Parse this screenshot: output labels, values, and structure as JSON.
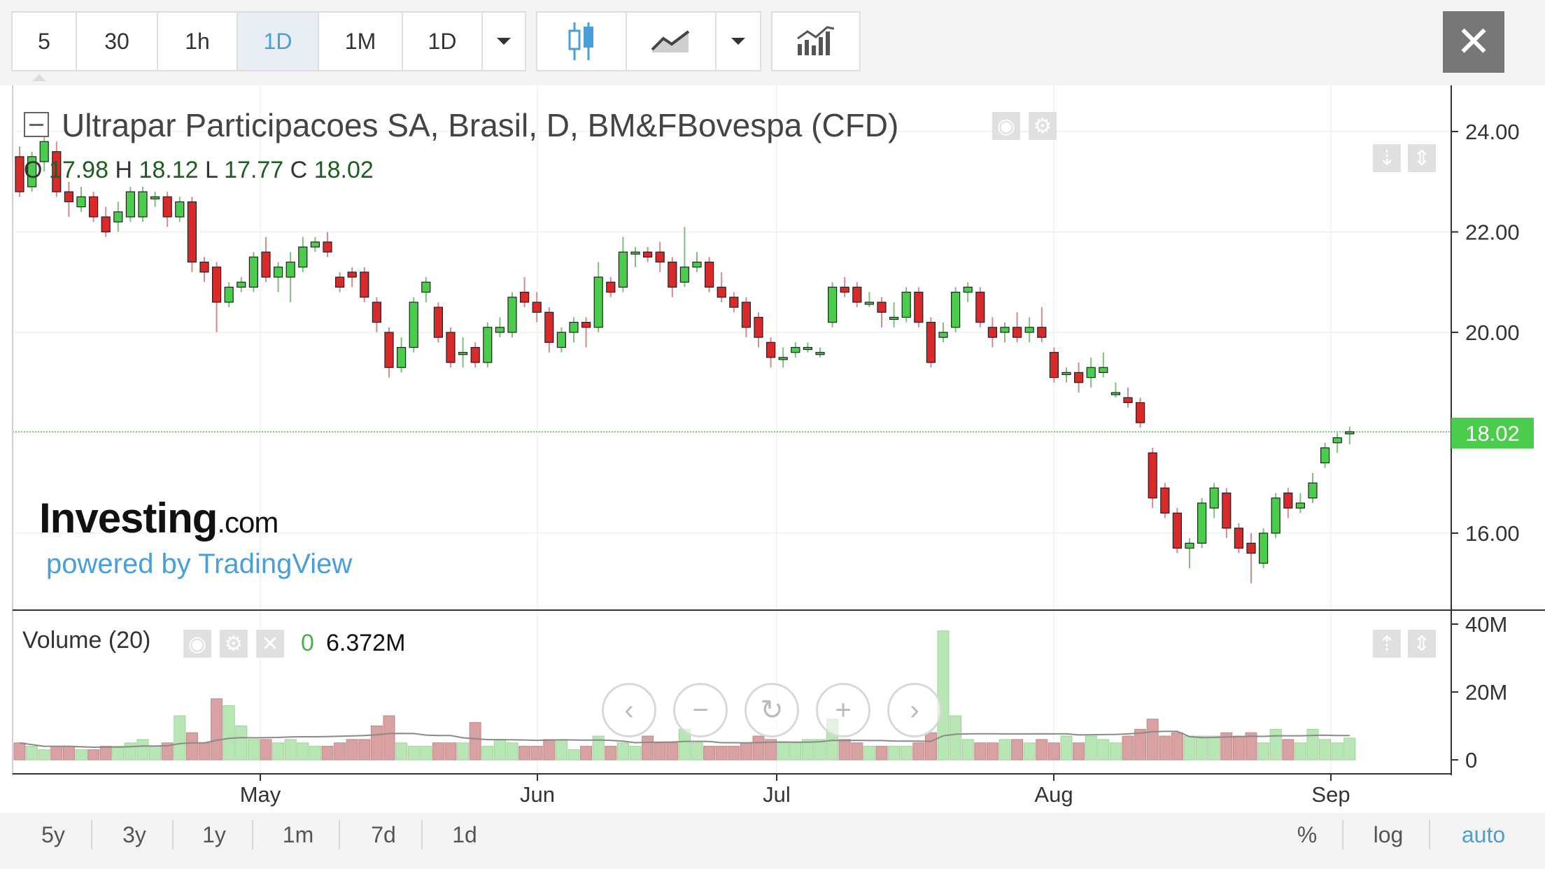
{
  "toolbar": {
    "intervals": [
      {
        "label": "5",
        "active": false
      },
      {
        "label": "30",
        "active": false
      },
      {
        "label": "1h",
        "active": false
      },
      {
        "label": "1D",
        "active": true
      },
      {
        "label": "1M",
        "active": false
      },
      {
        "label": "1D",
        "active": false
      }
    ],
    "icons": [
      "chevron-down-icon",
      "candlestick-icon",
      "line-chart-icon",
      "chevron-down-icon",
      "indicators-icon",
      "close-icon"
    ],
    "close_label": "✕"
  },
  "header": {
    "title": "Ultrapar Participacoes SA, Brasil, D, BM&FBovespa (CFD)",
    "ohlc": {
      "O": "17.98",
      "H": "18.12",
      "L": "17.77",
      "C": "18.02"
    }
  },
  "watermark": {
    "brand": "Investing",
    "suffix": ".com",
    "powered": "powered by TradingView"
  },
  "volume_panel": {
    "title": "Volume (20)",
    "zero": "0",
    "value": "6.372M"
  },
  "bottombar": {
    "ranges": [
      "5y",
      "3y",
      "1y",
      "1m",
      "7d",
      "1d"
    ],
    "right": [
      "%",
      "log",
      "auto"
    ]
  },
  "colors": {
    "up": "#4ccc4c",
    "down": "#d82a2a",
    "up_vol": "#b9e6b5",
    "down_vol": "#d8a2a2",
    "last_price": "#4ccc4c"
  },
  "chart_data": {
    "type": "candlestick",
    "price_axis": {
      "ticks": [
        "24.00",
        "22.00",
        "20.00",
        "18.00",
        "16.00"
      ],
      "range": [
        14.9,
        24.9
      ]
    },
    "volume_axis": {
      "ticks": [
        "40M",
        "20M",
        "0"
      ],
      "range": [
        0,
        40
      ]
    },
    "x_ticks": [
      "May",
      "Jun",
      "Jul",
      "Aug",
      "Sep"
    ],
    "last_price": "18.02",
    "last_price_value": 18.02,
    "candles": [
      [
        23.5,
        22.8,
        23.7,
        22.7,
        5
      ],
      [
        22.9,
        23.5,
        23.6,
        22.8,
        4
      ],
      [
        23.4,
        23.8,
        24.0,
        23.2,
        3
      ],
      [
        23.6,
        22.8,
        23.8,
        22.7,
        4
      ],
      [
        22.8,
        22.6,
        23.0,
        22.3,
        4
      ],
      [
        22.5,
        22.7,
        22.9,
        22.4,
        3
      ],
      [
        22.7,
        22.3,
        22.8,
        22.2,
        3
      ],
      [
        22.3,
        22.0,
        22.5,
        21.9,
        4
      ],
      [
        22.2,
        22.4,
        22.6,
        22.0,
        4
      ],
      [
        22.3,
        22.8,
        22.9,
        22.2,
        5
      ],
      [
        22.3,
        22.8,
        22.9,
        22.2,
        6
      ],
      [
        22.7,
        22.7,
        22.8,
        22.5,
        4
      ],
      [
        22.7,
        22.3,
        22.8,
        22.1,
        5
      ],
      [
        22.3,
        22.6,
        22.7,
        22.2,
        13
      ],
      [
        22.6,
        21.4,
        22.7,
        21.2,
        8
      ],
      [
        21.4,
        21.2,
        21.5,
        21.0,
        5
      ],
      [
        21.3,
        20.6,
        21.4,
        20.0,
        18
      ],
      [
        20.6,
        20.9,
        21.0,
        20.5,
        16
      ],
      [
        20.9,
        21.0,
        21.1,
        20.8,
        10
      ],
      [
        20.9,
        21.5,
        21.6,
        20.8,
        6
      ],
      [
        21.6,
        21.1,
        21.9,
        21.0,
        6
      ],
      [
        21.1,
        21.3,
        21.4,
        20.8,
        5
      ],
      [
        21.1,
        21.4,
        21.6,
        20.6,
        6
      ],
      [
        21.3,
        21.7,
        21.9,
        21.2,
        5
      ],
      [
        21.7,
        21.8,
        21.9,
        21.6,
        4
      ],
      [
        21.8,
        21.6,
        22.0,
        21.5,
        4
      ],
      [
        21.1,
        20.9,
        21.2,
        20.8,
        5
      ],
      [
        21.2,
        21.1,
        21.3,
        20.9,
        6
      ],
      [
        21.2,
        20.7,
        21.3,
        20.6,
        6
      ],
      [
        20.6,
        20.2,
        20.7,
        20.0,
        10
      ],
      [
        20.0,
        19.3,
        20.1,
        19.1,
        13
      ],
      [
        19.3,
        19.7,
        19.9,
        19.2,
        5
      ],
      [
        19.7,
        20.6,
        20.7,
        19.6,
        4
      ],
      [
        20.8,
        21.0,
        21.1,
        20.6,
        4
      ],
      [
        20.5,
        19.9,
        20.6,
        19.8,
        5
      ],
      [
        20.0,
        19.4,
        20.1,
        19.3,
        5
      ],
      [
        19.6,
        19.6,
        19.9,
        19.3,
        5
      ],
      [
        19.7,
        19.4,
        19.8,
        19.3,
        11
      ],
      [
        19.4,
        20.1,
        20.2,
        19.3,
        4
      ],
      [
        20.0,
        20.1,
        20.3,
        19.9,
        6
      ],
      [
        20.0,
        20.7,
        20.8,
        19.9,
        5
      ],
      [
        20.8,
        20.6,
        21.1,
        20.5,
        4
      ],
      [
        20.6,
        20.4,
        20.8,
        20.2,
        4
      ],
      [
        20.4,
        19.8,
        20.5,
        19.6,
        6
      ],
      [
        19.7,
        20.0,
        20.1,
        19.6,
        6
      ],
      [
        20.0,
        20.2,
        20.3,
        19.8,
        3
      ],
      [
        20.2,
        20.1,
        20.3,
        19.7,
        4
      ],
      [
        20.1,
        21.1,
        21.4,
        20.0,
        7
      ],
      [
        21.0,
        20.8,
        21.1,
        20.7,
        4
      ],
      [
        20.9,
        21.6,
        21.9,
        20.8,
        5
      ],
      [
        21.6,
        21.6,
        21.7,
        21.3,
        4
      ],
      [
        21.6,
        21.5,
        21.7,
        21.4,
        7
      ],
      [
        21.6,
        21.4,
        21.8,
        21.2,
        5
      ],
      [
        21.4,
        20.9,
        21.5,
        20.7,
        5
      ],
      [
        21.0,
        21.3,
        22.1,
        20.9,
        9
      ],
      [
        21.3,
        21.4,
        21.6,
        21.2,
        5
      ],
      [
        21.4,
        20.9,
        21.5,
        20.8,
        4
      ],
      [
        20.9,
        20.7,
        21.2,
        20.6,
        4
      ],
      [
        20.7,
        20.5,
        20.8,
        20.4,
        4
      ],
      [
        20.6,
        20.1,
        20.7,
        19.9,
        5
      ],
      [
        20.3,
        19.9,
        20.4,
        19.7,
        7
      ],
      [
        19.8,
        19.5,
        19.9,
        19.3,
        6
      ],
      [
        19.5,
        19.5,
        19.7,
        19.3,
        5
      ],
      [
        19.6,
        19.7,
        19.8,
        19.5,
        5
      ],
      [
        19.7,
        19.7,
        19.8,
        19.6,
        6
      ],
      [
        19.6,
        19.6,
        19.7,
        19.5,
        6
      ],
      [
        20.2,
        20.9,
        21.0,
        20.1,
        12
      ],
      [
        20.9,
        20.8,
        21.1,
        20.7,
        6
      ],
      [
        20.9,
        20.6,
        21.0,
        20.5,
        5
      ],
      [
        20.6,
        20.6,
        20.8,
        20.5,
        4
      ],
      [
        20.6,
        20.4,
        20.7,
        20.1,
        4
      ],
      [
        20.3,
        20.3,
        20.6,
        20.1,
        4
      ],
      [
        20.3,
        20.8,
        20.9,
        20.2,
        4
      ],
      [
        20.8,
        20.2,
        20.9,
        20.1,
        5
      ],
      [
        20.2,
        19.4,
        20.3,
        19.3,
        8
      ],
      [
        19.9,
        20.0,
        20.2,
        19.8,
        38
      ],
      [
        20.1,
        20.8,
        20.9,
        20.0,
        13
      ],
      [
        20.8,
        20.9,
        21.0,
        20.6,
        6
      ],
      [
        20.8,
        20.2,
        20.9,
        20.1,
        5
      ],
      [
        20.1,
        19.9,
        20.3,
        19.7,
        5
      ],
      [
        20.0,
        20.1,
        20.2,
        19.8,
        6
      ],
      [
        20.1,
        19.9,
        20.4,
        19.8,
        6
      ],
      [
        20.0,
        20.1,
        20.3,
        19.8,
        5
      ],
      [
        20.1,
        19.9,
        20.5,
        19.8,
        6
      ],
      [
        19.6,
        19.1,
        19.7,
        19.0,
        5
      ],
      [
        19.2,
        19.2,
        19.3,
        19.0,
        7
      ],
      [
        19.2,
        19.0,
        19.4,
        18.8,
        5
      ],
      [
        19.1,
        19.3,
        19.5,
        18.9,
        7
      ],
      [
        19.2,
        19.3,
        19.6,
        19.1,
        6
      ],
      [
        18.8,
        18.8,
        19.0,
        18.7,
        5
      ],
      [
        18.7,
        18.6,
        18.9,
        18.5,
        7
      ],
      [
        18.6,
        18.2,
        18.7,
        18.1,
        9
      ],
      [
        17.6,
        16.7,
        17.7,
        16.5,
        12
      ],
      [
        16.9,
        16.4,
        17.0,
        16.3,
        7
      ],
      [
        16.4,
        15.7,
        16.5,
        15.6,
        8
      ],
      [
        15.7,
        15.8,
        15.9,
        15.3,
        7
      ],
      [
        15.8,
        16.6,
        16.7,
        15.7,
        7
      ],
      [
        16.5,
        16.9,
        17.0,
        16.3,
        7
      ],
      [
        16.8,
        16.1,
        16.9,
        15.9,
        8
      ],
      [
        16.1,
        15.7,
        16.2,
        15.6,
        7
      ],
      [
        15.8,
        15.6,
        16.0,
        15.0,
        8
      ],
      [
        15.4,
        16.0,
        16.1,
        15.3,
        5
      ],
      [
        16.0,
        16.7,
        16.8,
        15.9,
        9
      ],
      [
        16.8,
        16.5,
        16.9,
        16.3,
        6
      ],
      [
        16.5,
        16.6,
        16.8,
        16.4,
        5
      ],
      [
        16.7,
        17.0,
        17.2,
        16.6,
        9
      ],
      [
        17.4,
        17.7,
        17.8,
        17.3,
        6
      ],
      [
        17.8,
        17.9,
        18.0,
        17.6,
        5
      ],
      [
        17.98,
        18.02,
        18.12,
        17.77,
        6.4
      ]
    ]
  }
}
